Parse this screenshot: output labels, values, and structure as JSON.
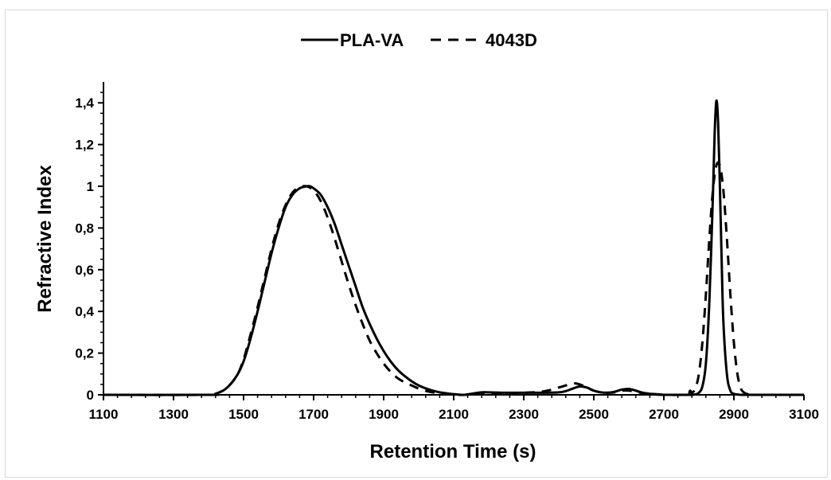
{
  "chart_data": {
    "type": "line",
    "title": "",
    "xlabel": "Retention Time (s)",
    "ylabel": "Refractive Index",
    "xlim": [
      1100,
      3100
    ],
    "ylim": [
      0,
      1.5
    ],
    "xticks": [
      1100,
      1300,
      1500,
      1700,
      1900,
      2100,
      2300,
      2500,
      2700,
      2900,
      3100
    ],
    "xtick_labels": [
      "1100",
      "1300",
      "1500",
      "1700",
      "1900",
      "2100",
      "2300",
      "2500",
      "2700",
      "2900",
      "3100"
    ],
    "yticks": [
      0,
      0.2,
      0.4,
      0.6,
      0.8,
      1.0,
      1.2,
      1.4
    ],
    "ytick_labels": [
      "0",
      "0,2",
      "0,4",
      "0,6",
      "0,8",
      "1",
      "1,2",
      "1,4"
    ],
    "grid": false,
    "legend_position": "top-center",
    "series": [
      {
        "name": "PLA-VA",
        "style": "solid",
        "color": "#000000",
        "x": [
          1100,
          1400,
          1420,
          1450,
          1480,
          1500,
          1520,
          1540,
          1560,
          1580,
          1600,
          1620,
          1640,
          1660,
          1680,
          1690,
          1700,
          1720,
          1740,
          1760,
          1780,
          1800,
          1820,
          1840,
          1860,
          1880,
          1900,
          1920,
          1940,
          1960,
          1980,
          2000,
          2030,
          2060,
          2090,
          2110,
          2130,
          2150,
          2180,
          2200,
          2250,
          2300,
          2350,
          2400,
          2420,
          2440,
          2460,
          2480,
          2500,
          2520,
          2540,
          2560,
          2580,
          2600,
          2620,
          2640,
          2660,
          2680,
          2700,
          2740,
          2770,
          2790,
          2800,
          2810,
          2820,
          2830,
          2840,
          2845,
          2850,
          2855,
          2860,
          2865,
          2870,
          2880,
          2890,
          2900,
          2910,
          2920,
          2950,
          3100
        ],
        "y": [
          0,
          0,
          0.005,
          0.03,
          0.09,
          0.16,
          0.27,
          0.4,
          0.54,
          0.68,
          0.8,
          0.9,
          0.96,
          0.99,
          1.0,
          1.0,
          0.99,
          0.96,
          0.9,
          0.82,
          0.72,
          0.62,
          0.52,
          0.42,
          0.34,
          0.27,
          0.21,
          0.16,
          0.12,
          0.09,
          0.065,
          0.045,
          0.025,
          0.012,
          0.005,
          0.002,
          0,
          0.005,
          0.012,
          0.012,
          0.01,
          0.01,
          0.01,
          0.012,
          0.018,
          0.03,
          0.04,
          0.035,
          0.02,
          0.012,
          0.01,
          0.015,
          0.025,
          0.028,
          0.02,
          0.01,
          0.005,
          0.003,
          0,
          0,
          0,
          0.002,
          0.01,
          0.04,
          0.15,
          0.45,
          0.95,
          1.25,
          1.41,
          1.3,
          1.0,
          0.65,
          0.35,
          0.1,
          0.02,
          0.005,
          0.002,
          0,
          0,
          0
        ]
      },
      {
        "name": "4043D",
        "style": "dashed",
        "color": "#000000",
        "x": [
          1100,
          1400,
          1420,
          1450,
          1480,
          1500,
          1520,
          1540,
          1560,
          1580,
          1600,
          1620,
          1640,
          1660,
          1680,
          1700,
          1720,
          1740,
          1760,
          1780,
          1800,
          1820,
          1840,
          1860,
          1880,
          1900,
          1920,
          1940,
          1960,
          1980,
          2000,
          2030,
          2060,
          2090,
          2110,
          2130,
          2150,
          2200,
          2250,
          2300,
          2350,
          2380,
          2400,
          2420,
          2440,
          2460,
          2480,
          2500,
          2520,
          2540,
          2560,
          2580,
          2600,
          2620,
          2640,
          2660,
          2700,
          2750,
          2770,
          2775,
          2780,
          2790,
          2800,
          2810,
          2820,
          2830,
          2840,
          2850,
          2860,
          2870,
          2880,
          2890,
          2900,
          2910,
          2920,
          2930,
          2940,
          2950,
          3100
        ],
        "y": [
          0,
          0,
          0.005,
          0.03,
          0.09,
          0.17,
          0.29,
          0.42,
          0.56,
          0.7,
          0.82,
          0.91,
          0.97,
          0.995,
          1.0,
          0.98,
          0.93,
          0.85,
          0.75,
          0.64,
          0.53,
          0.43,
          0.34,
          0.26,
          0.2,
          0.15,
          0.11,
          0.08,
          0.06,
          0.045,
          0.03,
          0.015,
          0.007,
          0.003,
          0,
          0,
          0.003,
          0.008,
          0.008,
          0.01,
          0.015,
          0.025,
          0.035,
          0.045,
          0.055,
          0.05,
          0.035,
          0.02,
          0.012,
          0.01,
          0.012,
          0.02,
          0.02,
          0.015,
          0.008,
          0.003,
          0,
          0,
          0.005,
          0.02,
          0.01,
          0.03,
          0.1,
          0.25,
          0.48,
          0.75,
          0.98,
          1.1,
          1.1,
          0.98,
          0.75,
          0.48,
          0.25,
          0.1,
          0.03,
          0.01,
          0.003,
          0,
          0
        ]
      }
    ]
  }
}
